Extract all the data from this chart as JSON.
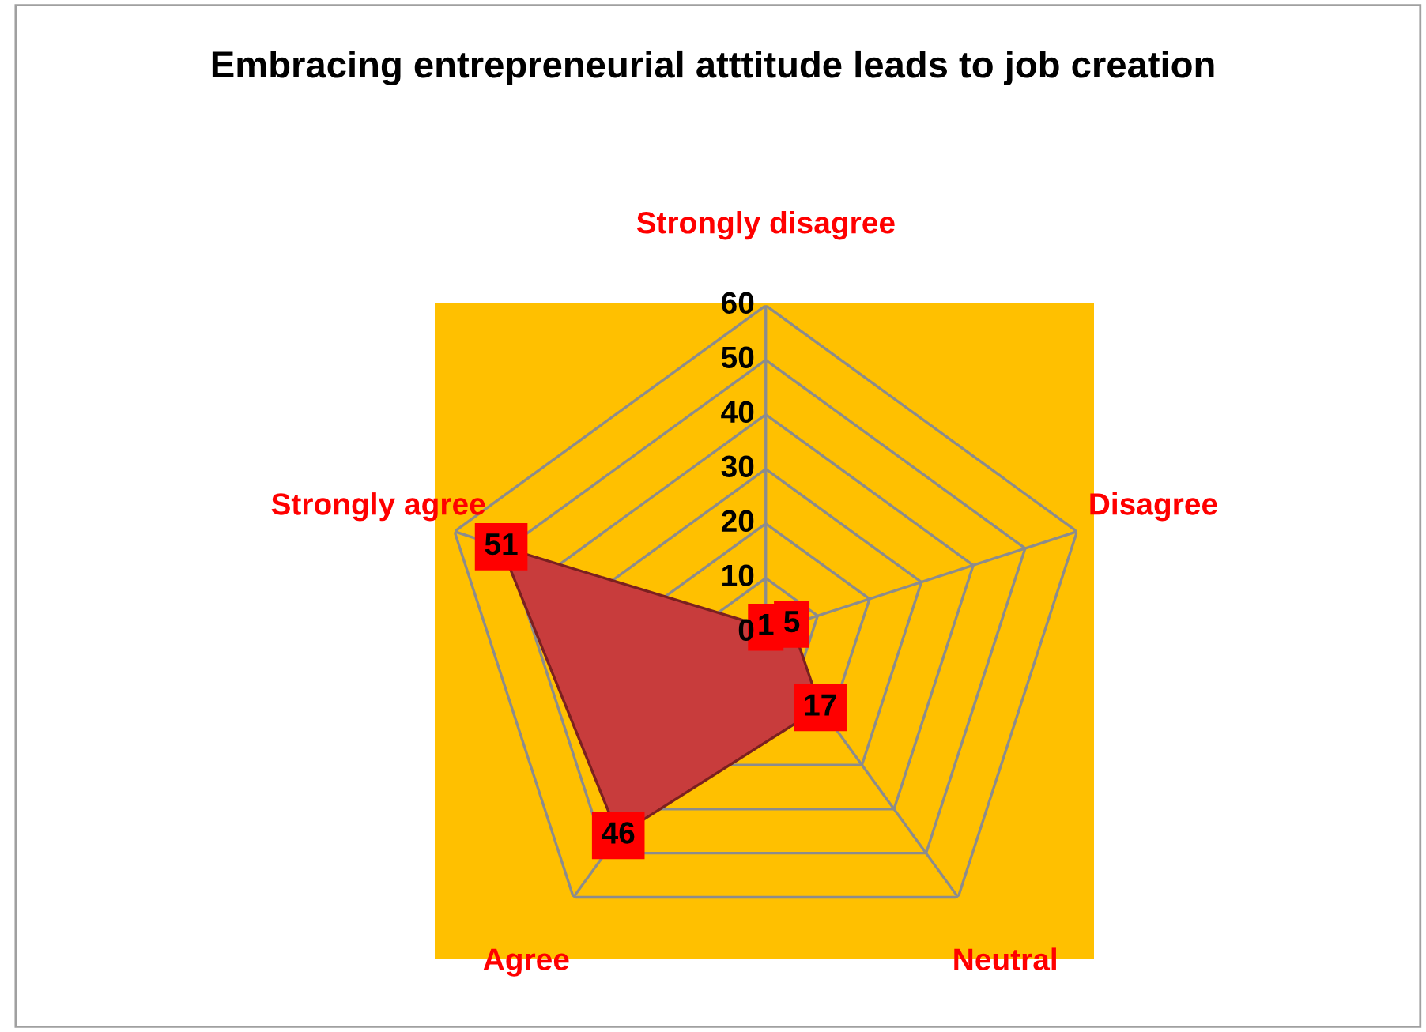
{
  "chart_data": {
    "type": "radar",
    "title": "Embracing entrepreneurial atttitude leads to job creation",
    "categories": [
      "Strongly disagree",
      "Disagree",
      "Neutral",
      "Agree",
      "Strongly agree"
    ],
    "series": [
      {
        "color": "#c83c3c",
        "values": [
          1,
          5,
          17,
          46,
          51
        ]
      }
    ],
    "ylim": [
      0,
      60
    ],
    "yticks": [
      0,
      10,
      20,
      30,
      40,
      50,
      60
    ],
    "grid": true,
    "data_labels": true
  }
}
